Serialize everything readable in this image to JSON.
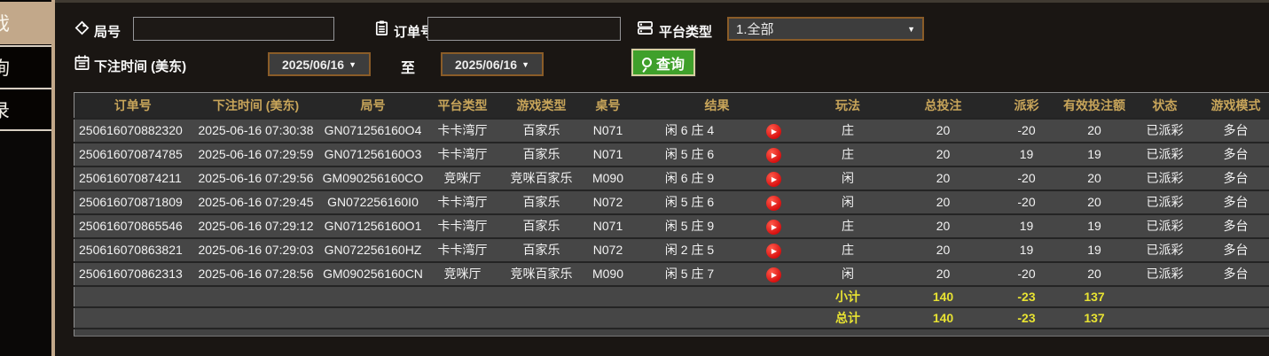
{
  "sidebar": {
    "tabs": [
      {
        "label": "戏",
        "active": true
      },
      {
        "label": "询",
        "active": false
      },
      {
        "label": "录",
        "active": false
      }
    ]
  },
  "filters": {
    "round_label": "局号",
    "round_value": "",
    "order_label": "订单号",
    "order_value": "",
    "platform_label": "平台类型",
    "platform_value": "1.全部",
    "bet_time_label": "下注时间 (美东)",
    "date_from": "2025/06/16",
    "to_label": "至",
    "date_to": "2025/06/16",
    "search_label": "查询"
  },
  "icons": {
    "dropdown_arrow": "▼",
    "play": "▶"
  },
  "table": {
    "headers": [
      "订单号",
      "下注时间 (美东)",
      "局号",
      "平台类型",
      "游戏类型",
      "桌号",
      "结果",
      "玩法",
      "总投注",
      "派彩",
      "有效投注额",
      "状态",
      "游戏模式"
    ],
    "rows": [
      {
        "order": "250616070882320",
        "time": "2025-06-16 07:30:38",
        "round": "GN071256160O4",
        "platform": "卡卡湾厅",
        "game": "百家乐",
        "table_no": "N071",
        "result": "闲 6 庄 4",
        "play": "庄",
        "total_bet": "20",
        "payout": "-20",
        "payout_color": "green",
        "valid_bet": "20",
        "status": "已派彩",
        "mode": "多台"
      },
      {
        "order": "250616070874785",
        "time": "2025-06-16 07:29:59",
        "round": "GN071256160O3",
        "platform": "卡卡湾厅",
        "game": "百家乐",
        "table_no": "N071",
        "result": "闲 5 庄 6",
        "play": "庄",
        "total_bet": "20",
        "payout": "19",
        "payout_color": "red",
        "valid_bet": "19",
        "status": "已派彩",
        "mode": "多台"
      },
      {
        "order": "250616070874211",
        "time": "2025-06-16 07:29:56",
        "round": "GM090256160CO",
        "platform": "竞咪厅",
        "game": "竞咪百家乐",
        "table_no": "M090",
        "result": "闲 6 庄 9",
        "play": "闲",
        "total_bet": "20",
        "payout": "-20",
        "payout_color": "green",
        "valid_bet": "20",
        "status": "已派彩",
        "mode": "多台"
      },
      {
        "order": "250616070871809",
        "time": "2025-06-16 07:29:45",
        "round": "GN072256160I0",
        "platform": "卡卡湾厅",
        "game": "百家乐",
        "table_no": "N072",
        "result": "闲 5 庄 6",
        "play": "闲",
        "total_bet": "20",
        "payout": "-20",
        "payout_color": "green",
        "valid_bet": "20",
        "status": "已派彩",
        "mode": "多台"
      },
      {
        "order": "250616070865546",
        "time": "2025-06-16 07:29:12",
        "round": "GN071256160O1",
        "platform": "卡卡湾厅",
        "game": "百家乐",
        "table_no": "N071",
        "result": "闲 5 庄 9",
        "play": "庄",
        "total_bet": "20",
        "payout": "19",
        "payout_color": "red",
        "valid_bet": "19",
        "status": "已派彩",
        "mode": "多台"
      },
      {
        "order": "250616070863821",
        "time": "2025-06-16 07:29:03",
        "round": "GN072256160HZ",
        "platform": "卡卡湾厅",
        "game": "百家乐",
        "table_no": "N072",
        "result": "闲 2 庄 5",
        "play": "庄",
        "total_bet": "20",
        "payout": "19",
        "payout_color": "red",
        "valid_bet": "19",
        "status": "已派彩",
        "mode": "多台"
      },
      {
        "order": "250616070862313",
        "time": "2025-06-16 07:28:56",
        "round": "GM090256160CN",
        "platform": "竞咪厅",
        "game": "竞咪百家乐",
        "table_no": "M090",
        "result": "闲 5 庄 7",
        "play": "闲",
        "total_bet": "20",
        "payout": "-20",
        "payout_color": "green",
        "valid_bet": "20",
        "status": "已派彩",
        "mode": "多台"
      }
    ],
    "summary_rows": [
      {
        "label": "小计",
        "total_bet": "140",
        "payout": "-23",
        "valid_bet": "137"
      },
      {
        "label": "总计",
        "total_bet": "140",
        "payout": "-23",
        "valid_bet": "137"
      }
    ]
  },
  "colors": {
    "accent_tan": "#c2a88a",
    "header_gold": "#c8a55a",
    "win_red": "#b3122d",
    "lose_green": "#35d435",
    "status_green": "#2ed32e",
    "total_yellow": "#e8e332",
    "button_green": "#3fa02b",
    "select_border_brown": "#8a5c28"
  }
}
